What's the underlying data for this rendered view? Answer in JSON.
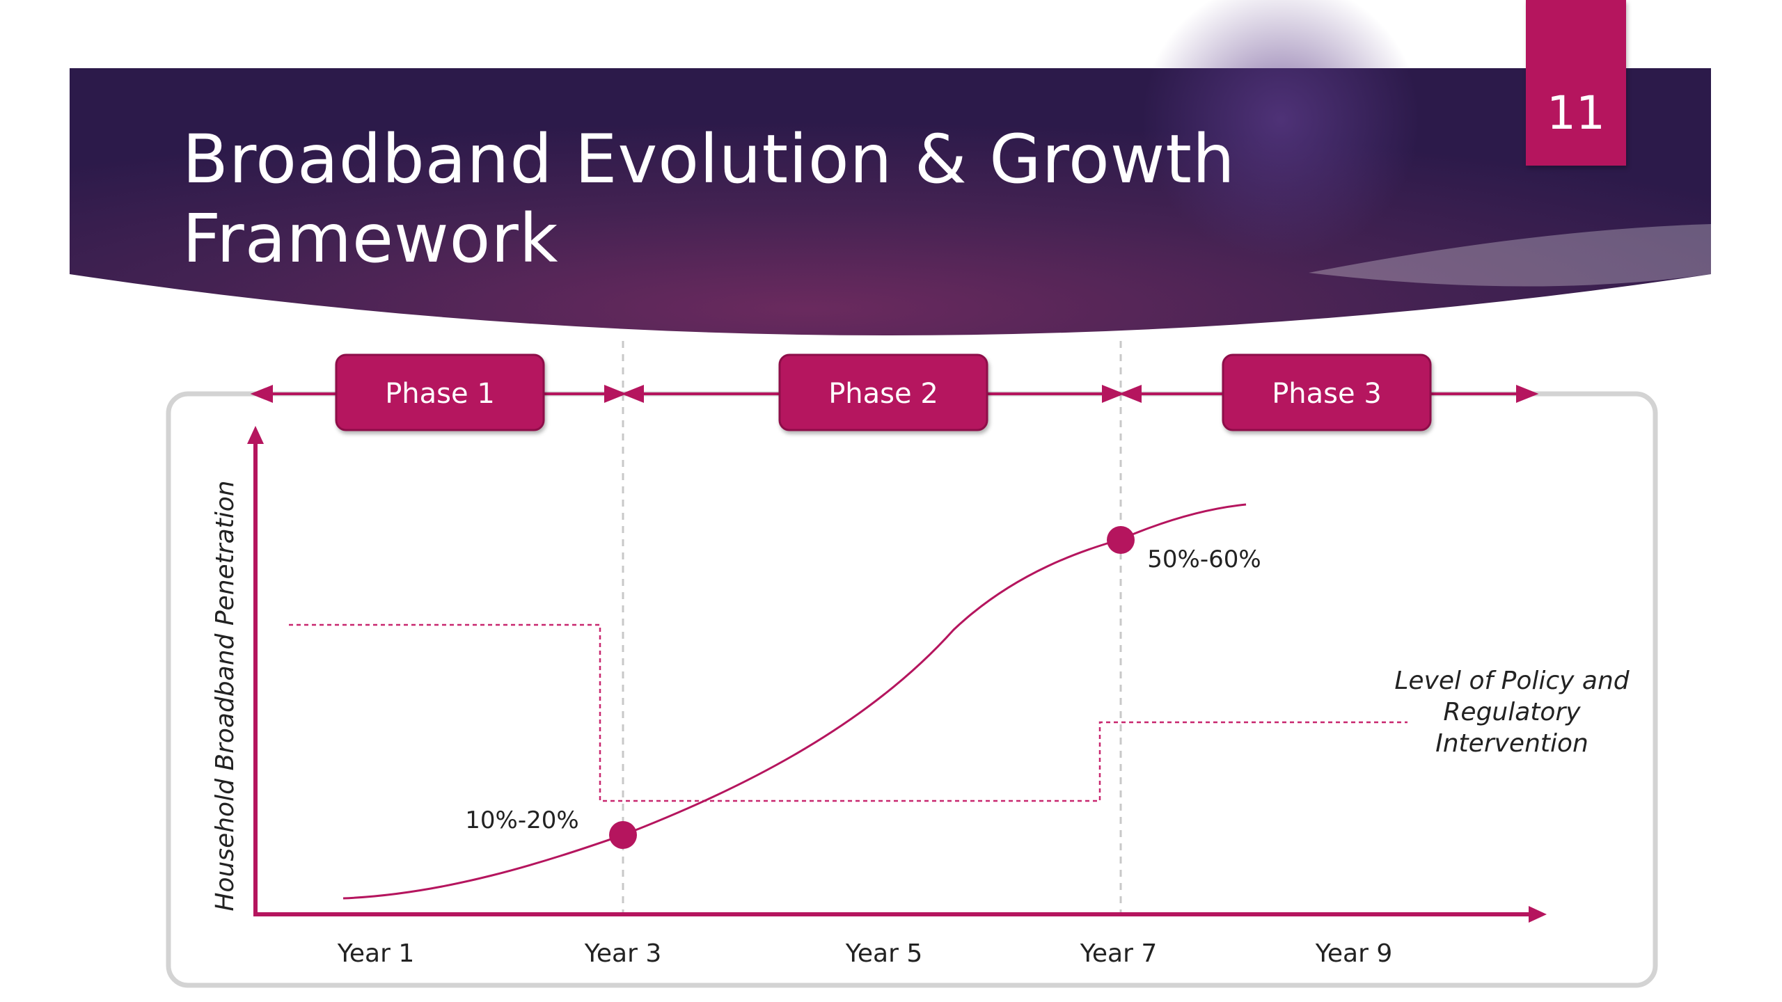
{
  "slide": {
    "title_line1": "Broadband Evolution & Growth",
    "title_line2": "Framework",
    "page_number": "11"
  },
  "colors": {
    "accent": "#b5155e",
    "header_dark": "#2e1a4d",
    "header_mid": "#6a2a5e",
    "frame_border": "#d3d3d3",
    "divider": "#c8c8c8"
  },
  "diagram": {
    "phases": [
      {
        "label": "Phase 1"
      },
      {
        "label": "Phase 2"
      },
      {
        "label": "Phase 3"
      }
    ],
    "x_ticks": [
      "Year 1",
      "Year 3",
      "Year 5",
      "Year 7",
      "Year 9"
    ],
    "y_axis_label": "Household Broadband Penetration",
    "milestones": [
      {
        "label": "10%-20%"
      },
      {
        "label": "50%-60%"
      }
    ],
    "policy_label_lines": [
      "Level of Policy and",
      "Regulatory",
      "Intervention"
    ]
  }
}
